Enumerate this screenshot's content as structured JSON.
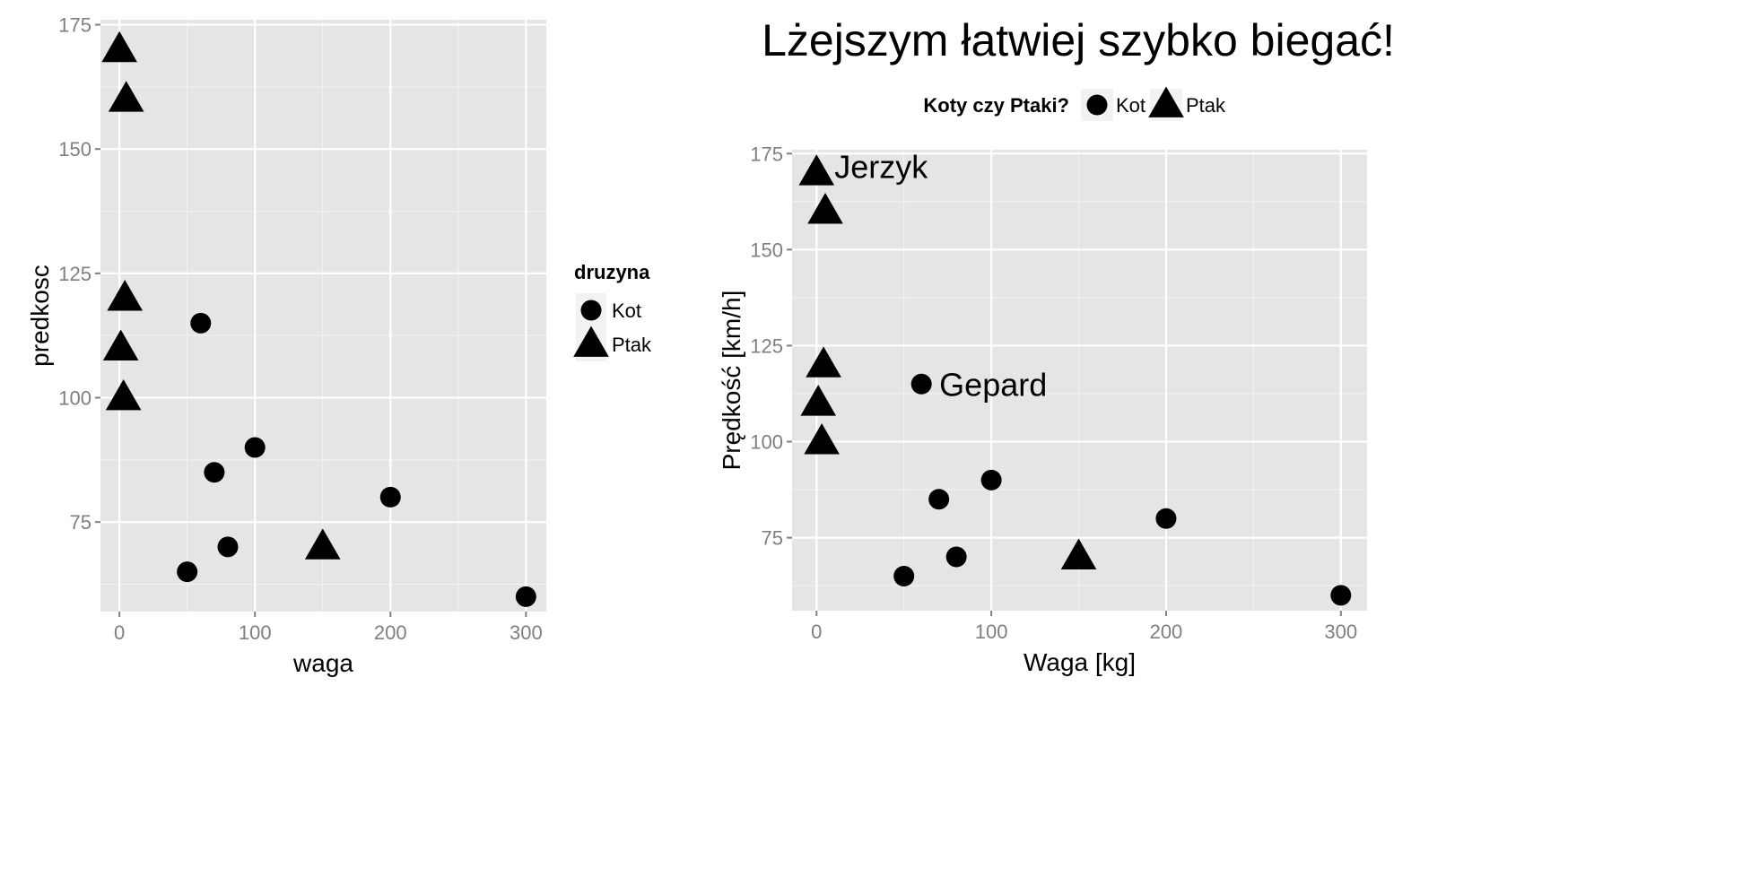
{
  "chart_data": [
    {
      "type": "scatter",
      "title": "",
      "xlabel": "waga",
      "ylabel": "predkosc",
      "xlim": [
        -14,
        315
      ],
      "ylim": [
        57,
        176
      ],
      "xticks": [
        0,
        100,
        200,
        300
      ],
      "yticks": [
        75,
        100,
        125,
        150,
        175
      ],
      "grid": true,
      "legend": {
        "title": "druzyna",
        "position": "right",
        "entries": [
          {
            "label": "Kot",
            "shape": "circle"
          },
          {
            "label": "Ptak",
            "shape": "triangle"
          }
        ]
      },
      "series": [
        {
          "name": "Kot",
          "shape": "circle",
          "points": [
            {
              "x": 60,
              "y": 115
            },
            {
              "x": 100,
              "y": 90
            },
            {
              "x": 70,
              "y": 85
            },
            {
              "x": 200,
              "y": 80
            },
            {
              "x": 80,
              "y": 70
            },
            {
              "x": 50,
              "y": 65
            },
            {
              "x": 300,
              "y": 60
            }
          ]
        },
        {
          "name": "Ptak",
          "shape": "triangle",
          "points": [
            {
              "x": 0,
              "y": 170
            },
            {
              "x": 5,
              "y": 160
            },
            {
              "x": 4,
              "y": 120
            },
            {
              "x": 1,
              "y": 110
            },
            {
              "x": 3,
              "y": 100
            },
            {
              "x": 150,
              "y": 70
            }
          ]
        }
      ]
    },
    {
      "type": "scatter",
      "title": "Lżejszym łatwiej szybko biegać!",
      "xlabel": "Waga [kg]",
      "ylabel": "Prędkość [km/h]",
      "xlim": [
        -14,
        315
      ],
      "ylim": [
        56,
        176
      ],
      "xticks": [
        0,
        100,
        200,
        300
      ],
      "yticks": [
        75,
        100,
        125,
        150,
        175
      ],
      "grid": true,
      "legend": {
        "title": "Koty czy Ptaki?",
        "position": "top",
        "entries": [
          {
            "label": "Kot",
            "shape": "circle"
          },
          {
            "label": "Ptak",
            "shape": "triangle"
          }
        ]
      },
      "annotations": [
        {
          "text": "Jerzyk",
          "x": 0,
          "y": 170
        },
        {
          "text": "Gepard",
          "x": 60,
          "y": 115
        }
      ],
      "series": [
        {
          "name": "Kot",
          "shape": "circle",
          "points": [
            {
              "x": 60,
              "y": 115
            },
            {
              "x": 100,
              "y": 90
            },
            {
              "x": 70,
              "y": 85
            },
            {
              "x": 200,
              "y": 80
            },
            {
              "x": 80,
              "y": 70
            },
            {
              "x": 50,
              "y": 65
            },
            {
              "x": 300,
              "y": 60
            }
          ]
        },
        {
          "name": "Ptak",
          "shape": "triangle",
          "points": [
            {
              "x": 0,
              "y": 170
            },
            {
              "x": 5,
              "y": 160
            },
            {
              "x": 4,
              "y": 120
            },
            {
              "x": 1,
              "y": 110
            },
            {
              "x": 3,
              "y": 100
            },
            {
              "x": 150,
              "y": 70
            }
          ]
        }
      ]
    }
  ]
}
